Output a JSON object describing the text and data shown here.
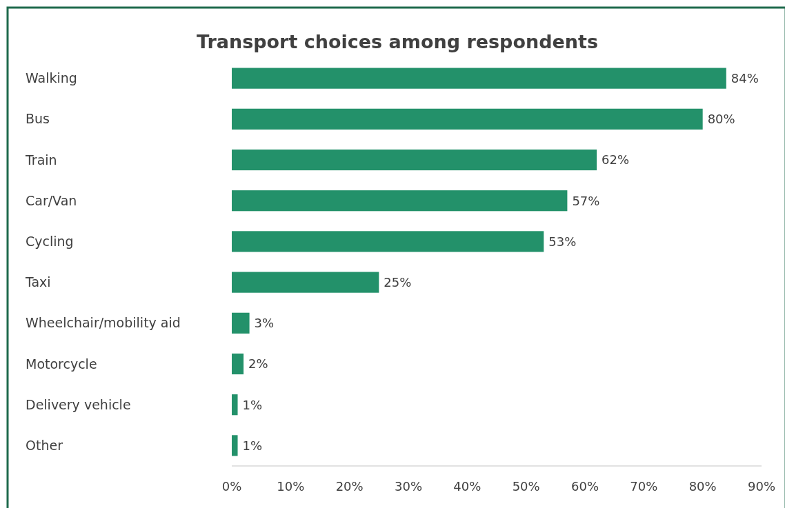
{
  "chart_data": {
    "type": "bar",
    "orientation": "horizontal",
    "title": "Transport choices among respondents",
    "categories": [
      "Walking",
      "Bus",
      "Train",
      "Car/Van",
      "Cycling",
      "Taxi",
      "Wheelchair/mobility aid",
      "Motorcycle",
      "Delivery vehicle",
      "Other"
    ],
    "values": [
      84,
      80,
      62,
      57,
      53,
      25,
      3,
      2,
      1,
      1
    ],
    "value_labels": [
      "84%",
      "80%",
      "62%",
      "57%",
      "53%",
      "25%",
      "3%",
      "2%",
      "1%",
      "1%"
    ],
    "color": "#23916a",
    "xlim": [
      0,
      90
    ],
    "xticks": [
      {
        "value": 0,
        "label": "0%"
      },
      {
        "value": 10,
        "label": "10%"
      },
      {
        "value": 20,
        "label": "20%"
      },
      {
        "value": 30,
        "label": "30%"
      },
      {
        "value": 40,
        "label": "40%"
      },
      {
        "value": 50,
        "label": "50%"
      },
      {
        "value": 60,
        "label": "60%"
      },
      {
        "value": 70,
        "label": "70%"
      },
      {
        "value": 80,
        "label": "80%"
      },
      {
        "value": 90,
        "label": "90%"
      }
    ],
    "grid": false
  }
}
